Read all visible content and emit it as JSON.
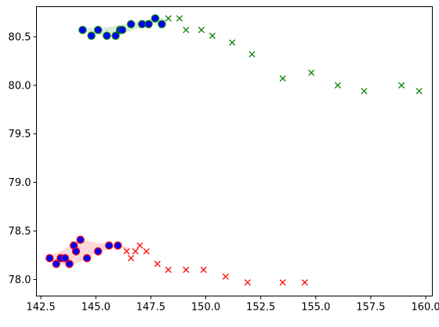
{
  "chart_data": {
    "type": "scatter",
    "title": "",
    "xlabel": "",
    "ylabel": "",
    "xlim": [
      142.3,
      160.3
    ],
    "ylim": [
      77.83,
      80.81
    ],
    "xticks": [
      142.5,
      145.0,
      147.5,
      150.0,
      152.5,
      155.0,
      157.5,
      160.0
    ],
    "xtick_labels": [
      "142.5",
      "145.0",
      "147.5",
      "150.0",
      "152.5",
      "155.0",
      "157.5",
      "160.0"
    ],
    "yticks": [
      78.0,
      78.5,
      79.0,
      79.5,
      80.0,
      80.5
    ],
    "ytick_labels": [
      "78.0",
      "78.5",
      "79.0",
      "79.5",
      "80.0",
      "80.5"
    ],
    "grid": false,
    "legend": "none",
    "series": [
      {
        "marker": "circle",
        "color": "#0000ff",
        "edge_color": "#008000",
        "x": [
          144.4,
          144.8,
          145.1,
          145.5,
          145.9,
          146.1,
          146.2,
          146.6,
          147.1,
          147.4,
          147.7,
          148.0
        ],
        "y": [
          80.57,
          80.51,
          80.57,
          80.51,
          80.51,
          80.57,
          80.57,
          80.63,
          80.63,
          80.63,
          80.69,
          80.63
        ]
      },
      {
        "marker": "x",
        "color": "#008000",
        "x": [
          148.3,
          148.8,
          149.1,
          149.8,
          150.3,
          151.2,
          152.1,
          153.5,
          154.8,
          156.0,
          157.2,
          158.9,
          159.7
        ],
        "y": [
          80.69,
          80.69,
          80.57,
          80.57,
          80.51,
          80.44,
          80.32,
          80.07,
          80.13,
          80.0,
          79.94,
          80.0,
          79.94
        ]
      },
      {
        "marker": "circle",
        "color": "#0000ff",
        "edge_color": "#ff0000",
        "x": [
          142.9,
          143.2,
          143.4,
          143.6,
          143.8,
          144.0,
          144.1,
          144.3,
          144.6,
          145.1,
          145.6,
          146.0
        ],
        "y": [
          78.22,
          78.16,
          78.22,
          78.22,
          78.16,
          78.35,
          78.29,
          78.41,
          78.22,
          78.29,
          78.35,
          78.35
        ]
      },
      {
        "marker": "x",
        "color": "#ff0000",
        "x": [
          146.4,
          146.6,
          146.8,
          147.0,
          147.3,
          147.8,
          148.3,
          149.1,
          149.9,
          150.9,
          151.9,
          153.5,
          154.5
        ],
        "y": [
          78.29,
          78.22,
          78.29,
          78.35,
          78.29,
          78.16,
          78.1,
          78.1,
          78.1,
          78.03,
          77.97,
          77.97,
          77.97
        ]
      }
    ],
    "bands": [
      {
        "color": "#008000",
        "x": [
          144.4,
          145.3,
          146.3,
          147.1,
          147.7,
          148.1,
          148.2
        ],
        "upper": [
          80.59,
          80.59,
          80.63,
          80.66,
          80.71,
          80.69,
          80.65
        ],
        "lower": [
          80.55,
          80.52,
          80.54,
          80.6,
          80.65,
          80.6,
          80.61
        ]
      },
      {
        "color": "#ff0000",
        "x": [
          142.8,
          143.5,
          144.3,
          145.0,
          145.7,
          146.2,
          146.5
        ],
        "upper": [
          78.24,
          78.3,
          78.42,
          78.38,
          78.36,
          78.35,
          78.33
        ],
        "lower": [
          78.2,
          78.15,
          78.18,
          78.27,
          78.32,
          78.32,
          78.3
        ]
      }
    ]
  }
}
